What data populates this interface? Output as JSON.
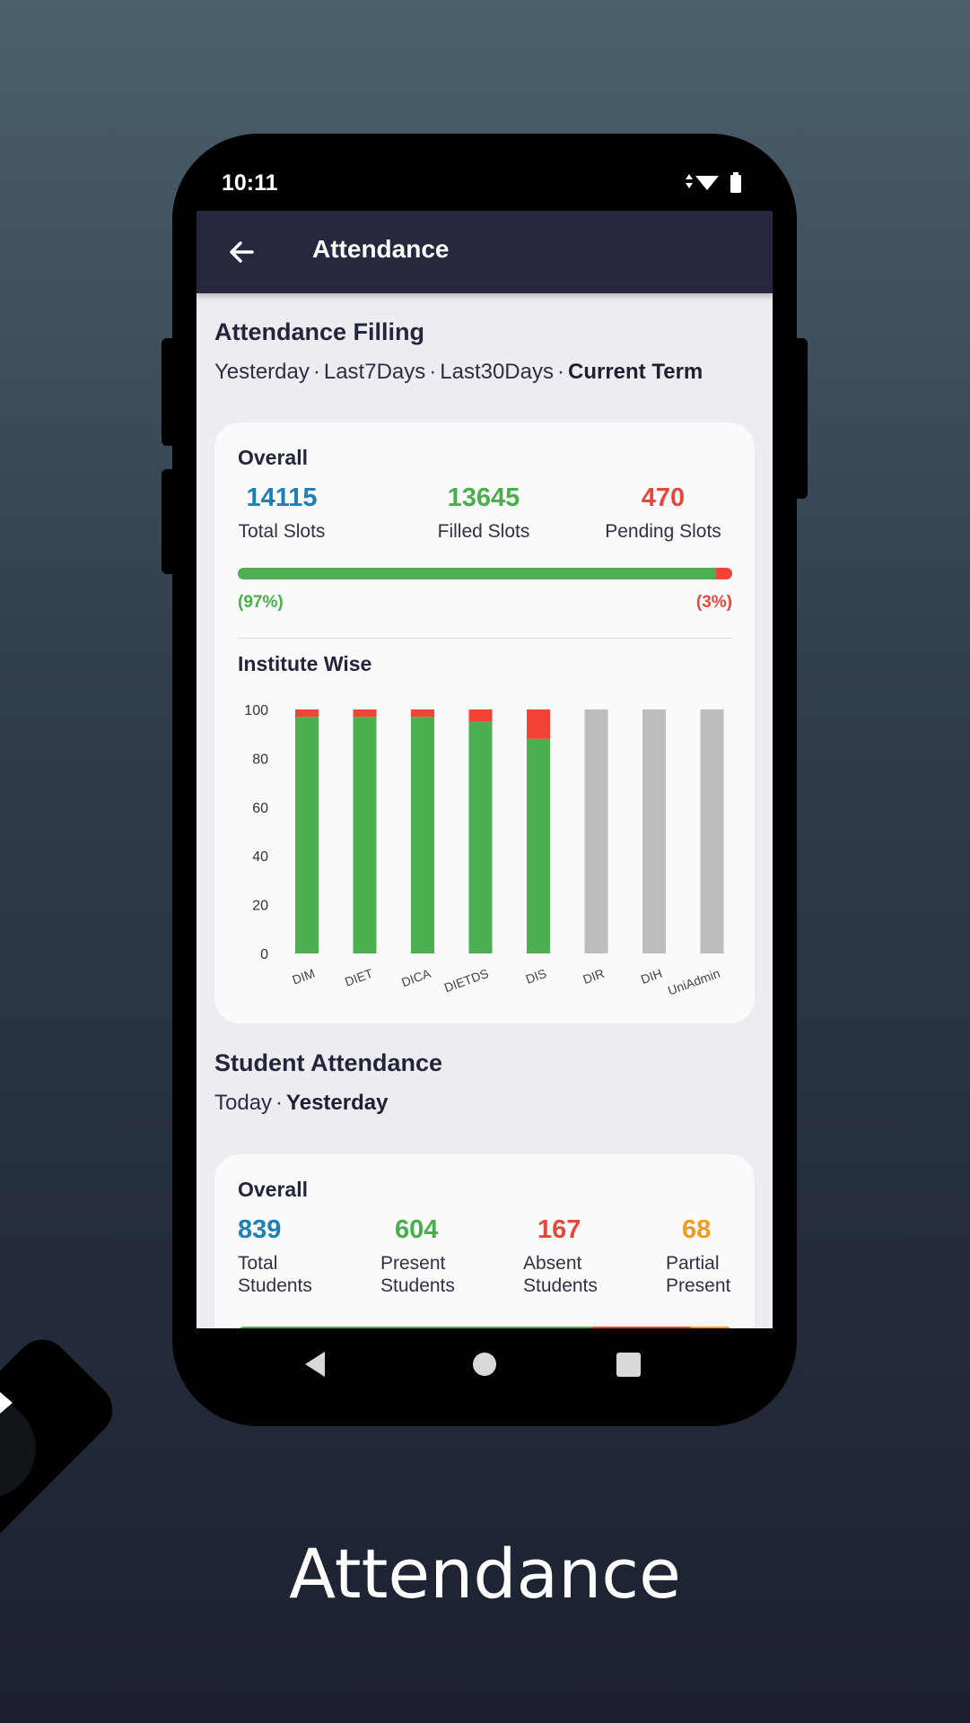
{
  "status_bar": {
    "time": "10:11"
  },
  "app_bar": {
    "title": "Attendance",
    "back_icon": "arrow-left-icon"
  },
  "attendance_filling": {
    "title": "Attendance Filling",
    "filters": [
      "Yesterday",
      "Last7Days",
      "Last30Days",
      "Current Term"
    ],
    "selected_filter": "Current Term",
    "overall": {
      "heading": "Overall",
      "total": {
        "value": "14115",
        "label": "Total Slots"
      },
      "filled": {
        "value": "13645",
        "label": "Filled Slots"
      },
      "pending": {
        "value": "470",
        "label": "Pending Slots"
      },
      "filled_pct_label": "(97%)",
      "pending_pct_label": "(3%)",
      "filled_fraction": 0.967
    },
    "institute_heading": "Institute Wise"
  },
  "chart_data": {
    "type": "bar",
    "stacked": true,
    "categories": [
      "DIM",
      "DIET",
      "DICA",
      "DIETDS",
      "DIS",
      "DIR",
      "DIH",
      "UniAdmin"
    ],
    "series": [
      {
        "values": [
          97,
          97,
          97,
          95,
          88,
          0,
          0,
          0
        ],
        "color": "#4caf50"
      },
      {
        "values": [
          3,
          3,
          3,
          5,
          12,
          0,
          0,
          0
        ],
        "color": "#f44336"
      },
      {
        "values": [
          0,
          0,
          0,
          0,
          0,
          100,
          100,
          100
        ],
        "color": "#bdbdbd"
      }
    ],
    "ylim": [
      0,
      100
    ],
    "yticks": [
      0,
      20,
      40,
      60,
      80,
      100
    ],
    "grid": false,
    "legend": "none"
  },
  "student_attendance": {
    "title": "Student Attendance",
    "filters": [
      "Today",
      "Yesterday"
    ],
    "selected_filter": "Yesterday",
    "overall": {
      "heading": "Overall",
      "total": {
        "value": "839",
        "label_1": "Total",
        "label_2": "Students"
      },
      "present": {
        "value": "604",
        "label_1": "Present",
        "label_2": "Students"
      },
      "absent": {
        "value": "167",
        "label_1": "Absent",
        "label_2": "Students"
      },
      "partial": {
        "value": "68",
        "label_1": "Partial",
        "label_2": "Present"
      }
    }
  },
  "nav_bar": {
    "back": "nav-back-icon",
    "home": "nav-home-icon",
    "recents": "nav-recents-icon"
  },
  "caption": "Attendance",
  "colors": {
    "app_bar": "#262840",
    "green": "#4caf50",
    "red": "#f44336",
    "gray": "#bdbdbd",
    "blue": "#1f80b8",
    "orange": "#f19a20"
  }
}
